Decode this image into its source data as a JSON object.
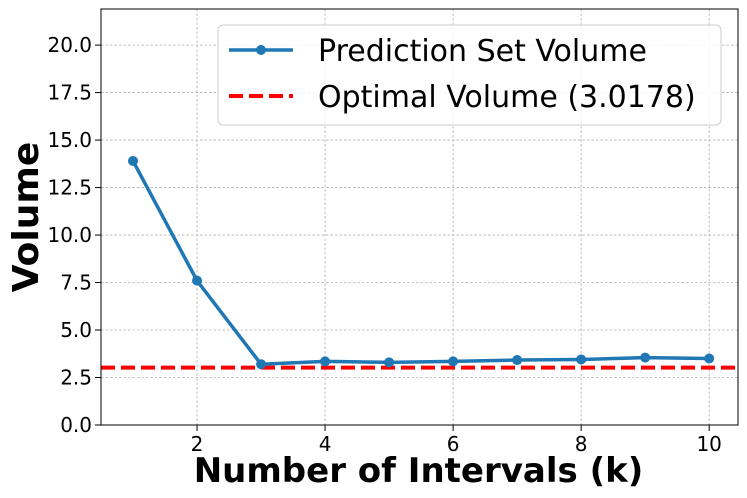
{
  "chart_data": {
    "type": "line",
    "xlabel": "Number of Intervals (k)",
    "ylabel": "Volume",
    "xlim": [
      0.5,
      10.45
    ],
    "ylim": [
      0,
      21.9
    ],
    "x_ticks": [
      2,
      4,
      6,
      8,
      10
    ],
    "y_ticks": [
      0.0,
      2.5,
      5.0,
      7.5,
      10.0,
      12.5,
      15.0,
      17.5,
      20.0
    ],
    "x_tick_labels": [
      "2",
      "4",
      "6",
      "8",
      "10"
    ],
    "y_tick_labels": [
      "0.0",
      "2.5",
      "5.0",
      "7.5",
      "10.0",
      "12.5",
      "15.0",
      "17.5",
      "20.0"
    ],
    "grid": true,
    "legend_position": "top-right",
    "series": [
      {
        "name": "Prediction Set Volume",
        "color": "#1f77b4",
        "style": "solid-with-markers",
        "x": [
          1,
          2,
          3,
          4,
          5,
          6,
          7,
          8,
          9,
          10
        ],
        "y": [
          13.9,
          7.6,
          3.2,
          3.35,
          3.3,
          3.35,
          3.42,
          3.45,
          3.55,
          3.5
        ]
      }
    ],
    "reference_lines": [
      {
        "name": "Optimal Volume (3.0178)",
        "color": "#ff0000",
        "style": "dashed",
        "y": 3.0178
      }
    ]
  }
}
